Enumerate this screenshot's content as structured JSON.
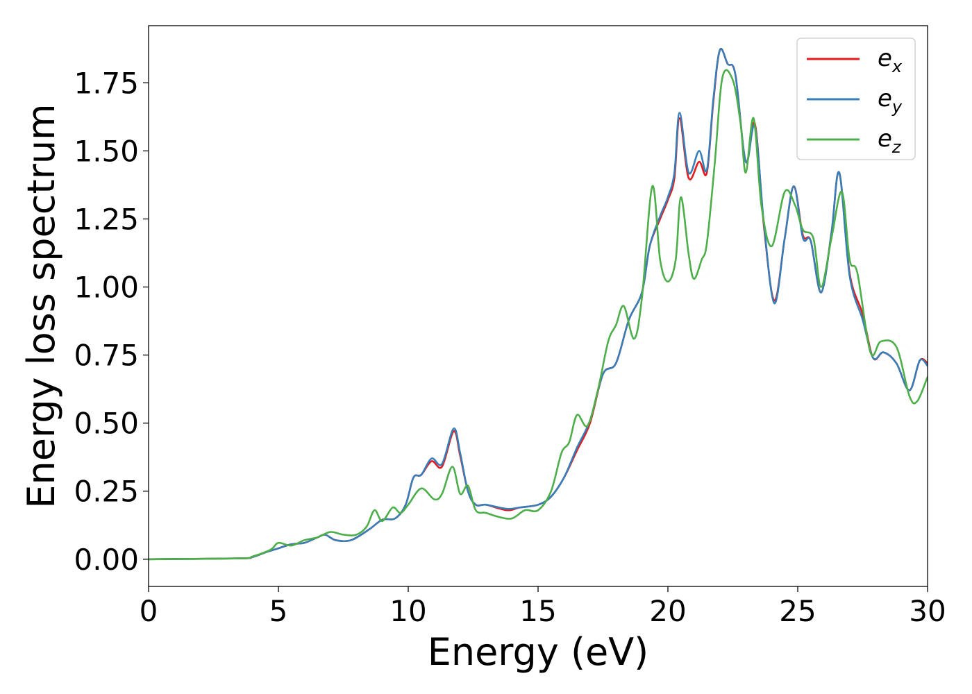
{
  "chart_data": {
    "type": "line",
    "xlabel": "Energy (eV)",
    "ylabel": "Energy loss spectrum",
    "xlim": [
      0,
      30
    ],
    "ylim": [
      -0.1,
      1.96
    ],
    "xticks": [
      0,
      5,
      10,
      15,
      20,
      25,
      30
    ],
    "xtick_labels": [
      "0",
      "5",
      "10",
      "15",
      "20",
      "25",
      "30"
    ],
    "yticks": [
      0.0,
      0.25,
      0.5,
      0.75,
      1.0,
      1.25,
      1.5,
      1.75
    ],
    "ytick_labels": [
      "0.00",
      "0.25",
      "0.50",
      "0.75",
      "1.00",
      "1.25",
      "1.50",
      "1.75"
    ],
    "grid": false,
    "legend_position": "top-right",
    "series": [
      {
        "name": "e_x",
        "legend_base": "e",
        "legend_sub": "x",
        "color": "#e41a1c",
        "points": [
          [
            0,
            0.0
          ],
          [
            3.5,
            0.003
          ],
          [
            4.0,
            0.008
          ],
          [
            4.5,
            0.025
          ],
          [
            5.0,
            0.04
          ],
          [
            5.5,
            0.055
          ],
          [
            6.0,
            0.06
          ],
          [
            6.5,
            0.08
          ],
          [
            6.8,
            0.09
          ],
          [
            7.2,
            0.07
          ],
          [
            7.8,
            0.07
          ],
          [
            8.5,
            0.11
          ],
          [
            9.0,
            0.145
          ],
          [
            9.5,
            0.15
          ],
          [
            9.9,
            0.2
          ],
          [
            10.2,
            0.3
          ],
          [
            10.5,
            0.31
          ],
          [
            10.9,
            0.36
          ],
          [
            11.3,
            0.34
          ],
          [
            11.75,
            0.47
          ],
          [
            12.0,
            0.38
          ],
          [
            12.3,
            0.25
          ],
          [
            12.6,
            0.2
          ],
          [
            13.0,
            0.2
          ],
          [
            13.8,
            0.18
          ],
          [
            14.3,
            0.19
          ],
          [
            15.0,
            0.2
          ],
          [
            15.5,
            0.23
          ],
          [
            16.0,
            0.3
          ],
          [
            16.5,
            0.4
          ],
          [
            17.0,
            0.5
          ],
          [
            17.5,
            0.68
          ],
          [
            18.0,
            0.72
          ],
          [
            18.5,
            0.88
          ],
          [
            19.0,
            0.98
          ],
          [
            19.3,
            1.15
          ],
          [
            19.7,
            1.25
          ],
          [
            20.0,
            1.32
          ],
          [
            20.25,
            1.4
          ],
          [
            20.45,
            1.62
          ],
          [
            20.8,
            1.4
          ],
          [
            21.2,
            1.46
          ],
          [
            21.5,
            1.42
          ],
          [
            21.75,
            1.68
          ],
          [
            22.0,
            1.87
          ],
          [
            22.3,
            1.82
          ],
          [
            22.6,
            1.78
          ],
          [
            23.0,
            1.46
          ],
          [
            23.35,
            1.6
          ],
          [
            23.7,
            1.22
          ],
          [
            24.1,
            0.95
          ],
          [
            24.5,
            1.18
          ],
          [
            24.85,
            1.37
          ],
          [
            25.2,
            1.19
          ],
          [
            25.5,
            1.17
          ],
          [
            25.9,
            0.98
          ],
          [
            26.3,
            1.2
          ],
          [
            26.6,
            1.42
          ],
          [
            27.0,
            1.05
          ],
          [
            27.5,
            0.9
          ],
          [
            27.9,
            0.74
          ],
          [
            28.3,
            0.76
          ],
          [
            28.8,
            0.72
          ],
          [
            29.3,
            0.62
          ],
          [
            29.7,
            0.73
          ],
          [
            30.0,
            0.72
          ]
        ]
      },
      {
        "name": "e_y",
        "legend_base": "e",
        "legend_sub": "y",
        "color": "#377eb8",
        "points": [
          [
            0,
            0.0
          ],
          [
            3.5,
            0.003
          ],
          [
            4.0,
            0.008
          ],
          [
            4.5,
            0.025
          ],
          [
            5.0,
            0.04
          ],
          [
            5.5,
            0.055
          ],
          [
            6.0,
            0.06
          ],
          [
            6.5,
            0.08
          ],
          [
            6.8,
            0.09
          ],
          [
            7.2,
            0.07
          ],
          [
            7.8,
            0.07
          ],
          [
            8.5,
            0.11
          ],
          [
            9.0,
            0.145
          ],
          [
            9.5,
            0.15
          ],
          [
            9.9,
            0.2
          ],
          [
            10.2,
            0.3
          ],
          [
            10.5,
            0.31
          ],
          [
            10.9,
            0.37
          ],
          [
            11.3,
            0.35
          ],
          [
            11.75,
            0.48
          ],
          [
            12.0,
            0.39
          ],
          [
            12.3,
            0.25
          ],
          [
            12.6,
            0.2
          ],
          [
            13.0,
            0.2
          ],
          [
            13.8,
            0.185
          ],
          [
            14.3,
            0.19
          ],
          [
            15.0,
            0.2
          ],
          [
            15.5,
            0.23
          ],
          [
            16.0,
            0.3
          ],
          [
            16.5,
            0.41
          ],
          [
            17.0,
            0.51
          ],
          [
            17.5,
            0.68
          ],
          [
            18.0,
            0.72
          ],
          [
            18.5,
            0.88
          ],
          [
            19.0,
            0.98
          ],
          [
            19.3,
            1.15
          ],
          [
            19.7,
            1.26
          ],
          [
            20.0,
            1.33
          ],
          [
            20.25,
            1.42
          ],
          [
            20.45,
            1.64
          ],
          [
            20.8,
            1.42
          ],
          [
            21.2,
            1.5
          ],
          [
            21.5,
            1.43
          ],
          [
            21.75,
            1.69
          ],
          [
            22.0,
            1.87
          ],
          [
            22.3,
            1.82
          ],
          [
            22.6,
            1.78
          ],
          [
            23.0,
            1.46
          ],
          [
            23.35,
            1.59
          ],
          [
            23.7,
            1.23
          ],
          [
            24.1,
            0.94
          ],
          [
            24.5,
            1.18
          ],
          [
            24.85,
            1.37
          ],
          [
            25.2,
            1.18
          ],
          [
            25.5,
            1.17
          ],
          [
            25.9,
            0.98
          ],
          [
            26.3,
            1.2
          ],
          [
            26.6,
            1.42
          ],
          [
            27.0,
            1.04
          ],
          [
            27.5,
            0.88
          ],
          [
            27.9,
            0.74
          ],
          [
            28.3,
            0.76
          ],
          [
            28.8,
            0.72
          ],
          [
            29.3,
            0.62
          ],
          [
            29.7,
            0.73
          ],
          [
            30.0,
            0.71
          ]
        ]
      },
      {
        "name": "e_z",
        "legend_base": "e",
        "legend_sub": "z",
        "color": "#4daf4a",
        "points": [
          [
            0,
            0.0
          ],
          [
            3.5,
            0.003
          ],
          [
            4.0,
            0.01
          ],
          [
            4.7,
            0.035
          ],
          [
            5.0,
            0.06
          ],
          [
            5.5,
            0.05
          ],
          [
            6.0,
            0.07
          ],
          [
            6.5,
            0.08
          ],
          [
            7.0,
            0.1
          ],
          [
            7.5,
            0.09
          ],
          [
            8.0,
            0.09
          ],
          [
            8.4,
            0.12
          ],
          [
            8.7,
            0.18
          ],
          [
            9.0,
            0.14
          ],
          [
            9.4,
            0.19
          ],
          [
            9.7,
            0.17
          ],
          [
            10.0,
            0.2
          ],
          [
            10.5,
            0.26
          ],
          [
            11.0,
            0.22
          ],
          [
            11.3,
            0.24
          ],
          [
            11.7,
            0.34
          ],
          [
            12.0,
            0.24
          ],
          [
            12.3,
            0.27
          ],
          [
            12.6,
            0.18
          ],
          [
            13.0,
            0.17
          ],
          [
            13.5,
            0.155
          ],
          [
            14.0,
            0.15
          ],
          [
            14.5,
            0.18
          ],
          [
            15.0,
            0.18
          ],
          [
            15.5,
            0.25
          ],
          [
            15.9,
            0.39
          ],
          [
            16.2,
            0.43
          ],
          [
            16.5,
            0.53
          ],
          [
            16.9,
            0.49
          ],
          [
            17.3,
            0.62
          ],
          [
            17.7,
            0.8
          ],
          [
            18.0,
            0.86
          ],
          [
            18.3,
            0.93
          ],
          [
            18.7,
            0.81
          ],
          [
            19.0,
            0.96
          ],
          [
            19.4,
            1.37
          ],
          [
            19.7,
            1.1
          ],
          [
            20.0,
            1.02
          ],
          [
            20.3,
            1.1
          ],
          [
            20.5,
            1.33
          ],
          [
            20.8,
            1.12
          ],
          [
            21.0,
            1.03
          ],
          [
            21.3,
            1.1
          ],
          [
            21.5,
            1.16
          ],
          [
            21.8,
            1.45
          ],
          [
            22.1,
            1.77
          ],
          [
            22.5,
            1.76
          ],
          [
            22.8,
            1.6
          ],
          [
            23.0,
            1.42
          ],
          [
            23.3,
            1.62
          ],
          [
            23.6,
            1.3
          ],
          [
            24.0,
            1.15
          ],
          [
            24.5,
            1.35
          ],
          [
            24.9,
            1.3
          ],
          [
            25.2,
            1.21
          ],
          [
            25.6,
            1.18
          ],
          [
            25.9,
            1.0
          ],
          [
            26.3,
            1.18
          ],
          [
            26.7,
            1.35
          ],
          [
            27.0,
            1.1
          ],
          [
            27.3,
            1.05
          ],
          [
            27.8,
            0.76
          ],
          [
            28.2,
            0.8
          ],
          [
            28.8,
            0.78
          ],
          [
            29.3,
            0.6
          ],
          [
            29.6,
            0.58
          ],
          [
            30.0,
            0.67
          ]
        ]
      }
    ]
  }
}
